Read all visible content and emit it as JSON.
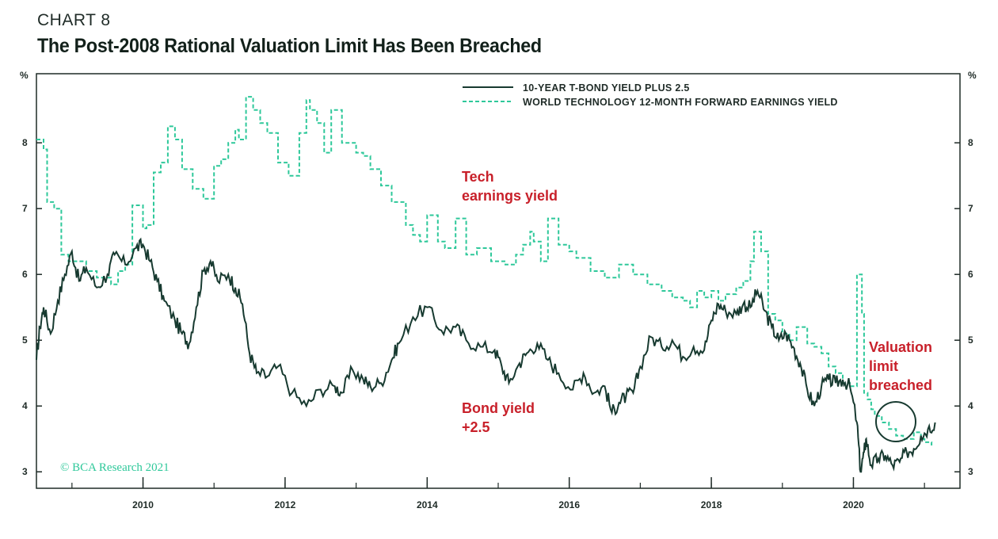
{
  "header": {
    "label": "CHART 8",
    "title": "The Post-2008 Rational Valuation Limit Has Been Breached"
  },
  "colors": {
    "bond": "#173a30",
    "tech": "#2ec89a",
    "annotation": "#c8202a",
    "axis": "#1f2b27"
  },
  "chart_data": {
    "type": "line",
    "title": "The Post-2008 Rational Valuation Limit Has Been Breached",
    "ylabel_left": "%",
    "ylabel_right": "%",
    "xlim": [
      2008.5,
      2021.5
    ],
    "ylim": [
      2.75,
      9.05
    ],
    "y_ticks": [
      "3",
      "4",
      "5",
      "6",
      "7",
      "8"
    ],
    "x_ticks": [
      "2010",
      "2012",
      "2014",
      "2016",
      "2018",
      "2020"
    ],
    "x_tick_values": [
      2010,
      2012,
      2014,
      2016,
      2018,
      2020
    ],
    "legend": {
      "placement": "top-right",
      "items": [
        "10-YEAR T-BOND YIELD PLUS 2.5",
        "WORLD TECHNOLOGY 12-MONTH FORWARD EARNINGS YIELD"
      ]
    },
    "series": [
      {
        "name": "10-YEAR T-BOND YIELD PLUS 2.5",
        "style": "solid",
        "x": [
          2008.5,
          2008.55,
          2008.6,
          2008.7,
          2008.8,
          2008.9,
          2009.0,
          2009.1,
          2009.2,
          2009.35,
          2009.5,
          2009.6,
          2009.75,
          2009.9,
          2010.0,
          2010.1,
          2010.2,
          2010.3,
          2010.45,
          2010.55,
          2010.65,
          2010.75,
          2010.85,
          2010.95,
          2011.05,
          2011.2,
          2011.3,
          2011.4,
          2011.5,
          2011.6,
          2011.75,
          2011.9,
          2012.1,
          2012.3,
          2012.5,
          2012.7,
          2012.8,
          2012.95,
          2013.1,
          2013.2,
          2013.35,
          2013.5,
          2013.6,
          2013.8,
          2014.0,
          2014.2,
          2014.4,
          2014.55,
          2014.75,
          2014.95,
          2015.05,
          2015.15,
          2015.3,
          2015.4,
          2015.55,
          2015.7,
          2015.85,
          2016.05,
          2016.2,
          2016.35,
          2016.5,
          2016.6,
          2016.7,
          2016.8,
          2016.9,
          2017.0,
          2017.15,
          2017.3,
          2017.45,
          2017.6,
          2017.75,
          2017.9,
          2018.0,
          2018.1,
          2018.2,
          2018.35,
          2018.45,
          2018.55,
          2018.65,
          2018.75,
          2018.85,
          2018.95,
          2019.05,
          2019.15,
          2019.25,
          2019.35,
          2019.45,
          2019.55,
          2019.65,
          2019.75,
          2019.85,
          2019.95,
          2020.05,
          2020.1,
          2020.15,
          2020.18,
          2020.25,
          2020.35,
          2020.45,
          2020.55,
          2020.65,
          2020.75,
          2020.85,
          2020.95,
          2021.05,
          2021.15
        ],
        "values": [
          4.7,
          5.2,
          5.5,
          5.1,
          5.6,
          6.0,
          6.35,
          5.9,
          6.1,
          5.8,
          6.0,
          6.3,
          6.15,
          6.4,
          6.45,
          6.2,
          5.9,
          5.6,
          5.3,
          5.1,
          4.95,
          5.5,
          6.05,
          6.2,
          5.9,
          6.0,
          5.8,
          5.55,
          4.8,
          4.5,
          4.45,
          4.6,
          4.2,
          4.0,
          4.25,
          4.3,
          4.2,
          4.55,
          4.4,
          4.3,
          4.35,
          4.7,
          4.95,
          5.35,
          5.5,
          5.15,
          5.2,
          5.0,
          4.9,
          4.85,
          4.6,
          4.35,
          4.65,
          4.8,
          4.95,
          4.7,
          4.5,
          4.25,
          4.5,
          4.2,
          4.3,
          3.9,
          4.05,
          4.15,
          4.2,
          4.6,
          5.05,
          4.9,
          5.0,
          4.75,
          4.9,
          4.85,
          5.3,
          5.55,
          5.45,
          5.4,
          5.55,
          5.5,
          5.75,
          5.45,
          5.2,
          5.0,
          5.1,
          4.9,
          4.65,
          4.25,
          4.0,
          4.3,
          4.4,
          4.35,
          4.4,
          4.3,
          3.75,
          3.0,
          3.3,
          3.5,
          3.1,
          3.2,
          3.25,
          3.1,
          3.15,
          3.3,
          3.35,
          3.55,
          3.65,
          3.75
        ]
      },
      {
        "name": "WORLD TECHNOLOGY 12-MONTH FORWARD EARNINGS YIELD",
        "style": "dashed",
        "x": [
          2008.5,
          2008.6,
          2008.65,
          2008.75,
          2008.85,
          2008.95,
          2009.2,
          2009.35,
          2009.55,
          2009.65,
          2009.75,
          2009.85,
          2010.0,
          2010.05,
          2010.15,
          2010.25,
          2010.35,
          2010.45,
          2010.55,
          2010.7,
          2010.85,
          2011.0,
          2011.1,
          2011.2,
          2011.3,
          2011.35,
          2011.45,
          2011.55,
          2011.65,
          2011.75,
          2011.9,
          2012.05,
          2012.2,
          2012.3,
          2012.35,
          2012.45,
          2012.55,
          2012.65,
          2012.8,
          2013.0,
          2013.1,
          2013.2,
          2013.35,
          2013.5,
          2013.7,
          2013.8,
          2013.9,
          2014.0,
          2014.15,
          2014.25,
          2014.4,
          2014.55,
          2014.7,
          2014.9,
          2015.1,
          2015.25,
          2015.35,
          2015.45,
          2015.5,
          2015.6,
          2015.7,
          2015.85,
          2016.0,
          2016.1,
          2016.3,
          2016.5,
          2016.7,
          2016.9,
          2017.1,
          2017.3,
          2017.45,
          2017.6,
          2017.7,
          2017.8,
          2017.9,
          2018.0,
          2018.1,
          2018.2,
          2018.35,
          2018.45,
          2018.55,
          2018.6,
          2018.7,
          2018.8,
          2018.9,
          2019.0,
          2019.1,
          2019.2,
          2019.35,
          2019.45,
          2019.55,
          2019.65,
          2019.75,
          2019.85,
          2019.95,
          2020.05,
          2020.12,
          2020.15,
          2020.2,
          2020.25,
          2020.3,
          2020.4,
          2020.5,
          2020.6,
          2020.7,
          2020.85,
          2020.95,
          2021.0,
          2021.1
        ],
        "values": [
          8.05,
          7.9,
          7.1,
          7.0,
          6.3,
          6.2,
          6.05,
          5.95,
          5.85,
          6.05,
          6.15,
          7.05,
          6.7,
          6.75,
          7.55,
          7.7,
          8.25,
          8.05,
          7.6,
          7.3,
          7.15,
          7.65,
          7.75,
          8.0,
          8.2,
          8.05,
          8.7,
          8.5,
          8.3,
          8.15,
          7.7,
          7.5,
          8.15,
          8.65,
          8.5,
          8.3,
          7.85,
          8.5,
          8.0,
          7.85,
          7.8,
          7.6,
          7.35,
          7.1,
          6.75,
          6.6,
          6.5,
          6.9,
          6.5,
          6.4,
          6.85,
          6.3,
          6.4,
          6.2,
          6.15,
          6.3,
          6.45,
          6.65,
          6.5,
          6.2,
          6.85,
          6.45,
          6.35,
          6.25,
          6.05,
          5.95,
          6.15,
          6.0,
          5.85,
          5.75,
          5.65,
          5.6,
          5.5,
          5.75,
          5.65,
          5.75,
          5.6,
          5.7,
          5.8,
          5.9,
          6.2,
          6.65,
          6.35,
          5.4,
          5.3,
          5.1,
          5.0,
          5.2,
          4.95,
          4.9,
          4.8,
          4.6,
          4.5,
          4.35,
          4.3,
          6.0,
          5.4,
          4.2,
          4.1,
          3.95,
          3.85,
          3.75,
          3.65,
          3.55,
          3.5,
          3.6,
          3.5,
          3.45,
          3.4
        ]
      }
    ],
    "annotations": [
      {
        "text": [
          "Tech",
          "earnings yield"
        ],
        "color": "annotation"
      },
      {
        "text": [
          "Bond yield",
          "+2.5"
        ],
        "color": "annotation"
      },
      {
        "text": [
          "Valuation",
          "limit",
          "breached"
        ],
        "color": "annotation"
      }
    ],
    "source": "© BCA Research 2021"
  }
}
